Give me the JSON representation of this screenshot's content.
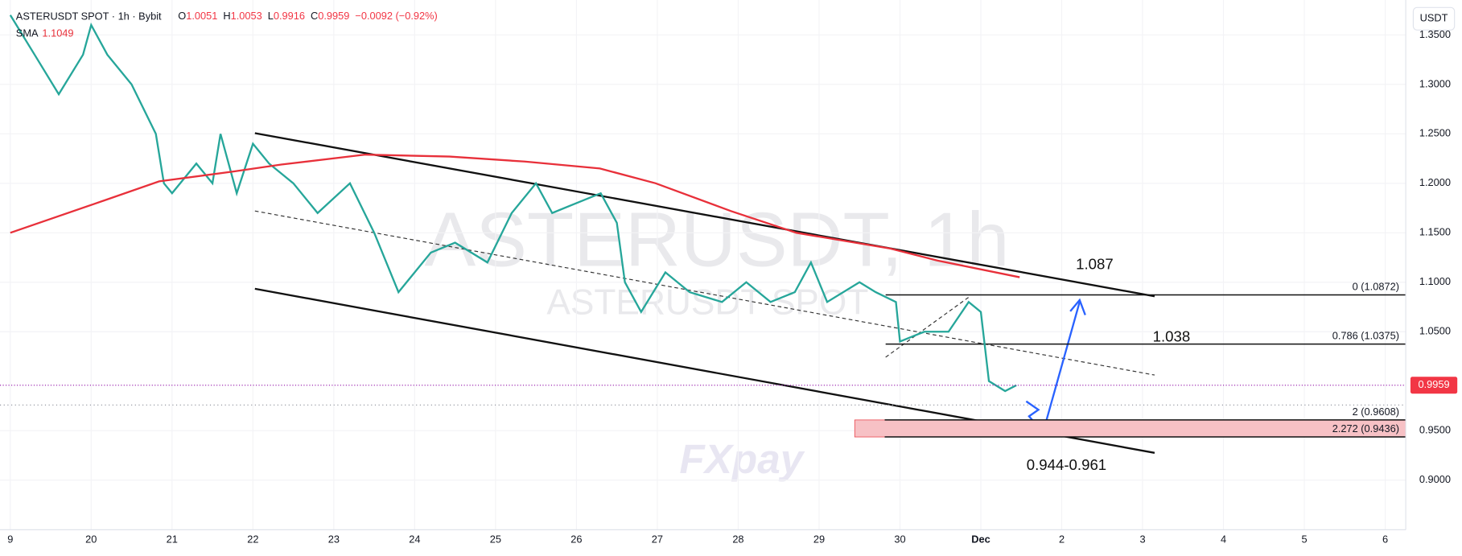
{
  "chart_data": {
    "type": "line",
    "symbol": "ASTERUSDT SPOT · 1h · Bybit",
    "ohlc": [
      {
        "label": "O",
        "value": "1.0051"
      },
      {
        "label": "H",
        "value": "1.0053"
      },
      {
        "label": "L",
        "value": "0.9916"
      },
      {
        "label": "C",
        "value": "0.9959"
      }
    ],
    "change": "−0.0092 (−0.92%)",
    "sma_label": "SMA",
    "sma_value": "1.1049",
    "watermark": "ASTERUSDT, 1h",
    "watermark_sub": "ASTERUSDT SPOT",
    "currency_button": "USDT",
    "logo": "FXpay",
    "last_price": {
      "value": 0.9959,
      "label": "0.9959",
      "color": "#f23645"
    },
    "series": [
      {
        "name": "ASTERUSDT",
        "color": "#26a69a",
        "x": [
          0,
          0.3,
          0.6,
          0.9,
          1.0,
          1.2,
          1.5,
          1.8,
          1.9,
          2.0,
          2.3,
          2.5,
          2.6,
          2.8,
          3.0,
          3.2,
          3.5,
          3.8,
          4.2,
          4.5,
          4.8,
          5.2,
          5.5,
          5.9,
          6.2,
          6.5,
          6.7,
          7.0,
          7.3,
          7.5,
          7.6,
          7.8,
          8.1,
          8.4,
          8.8,
          9.1,
          9.4,
          9.7,
          9.9,
          10.1,
          10.5,
          10.7,
          10.95,
          11.0,
          11.3,
          11.6,
          11.85,
          12.0,
          12.1,
          12.3,
          12.44
        ],
        "values": [
          1.37,
          1.33,
          1.29,
          1.33,
          1.36,
          1.33,
          1.3,
          1.25,
          1.2,
          1.19,
          1.22,
          1.2,
          1.25,
          1.19,
          1.24,
          1.22,
          1.2,
          1.17,
          1.2,
          1.15,
          1.09,
          1.13,
          1.14,
          1.12,
          1.17,
          1.2,
          1.17,
          1.18,
          1.19,
          1.16,
          1.1,
          1.07,
          1.11,
          1.09,
          1.08,
          1.1,
          1.08,
          1.09,
          1.12,
          1.08,
          1.1,
          1.09,
          1.08,
          1.04,
          1.05,
          1.05,
          1.08,
          1.07,
          1.0,
          0.99,
          0.9959
        ]
      },
      {
        "name": "SMA",
        "color": "#e8303a",
        "x": [
          0,
          1.03,
          1.84,
          2.77,
          3.35,
          4.39,
          5.43,
          6.36,
          7.29,
          7.98,
          8.91,
          9.72,
          10.88,
          11.46,
          12.48
        ],
        "values": [
          1.15,
          1.179,
          1.202,
          1.212,
          1.219,
          1.229,
          1.227,
          1.222,
          1.215,
          1.2,
          1.172,
          1.15,
          1.134,
          1.122,
          1.105
        ]
      }
    ],
    "fib_levels": [
      {
        "value": 1.0872,
        "label": "0 (1.0872)"
      },
      {
        "value": 1.0375,
        "label": "0.786 (1.0375)"
      },
      {
        "value": 0.9608,
        "label": "2 (0.9608)"
      },
      {
        "value": 0.9436,
        "label": "2.272 (0.9436)"
      }
    ],
    "annotations": [
      "1.087",
      "1.038",
      "0.944-0.961"
    ],
    "xlim": [
      -0.127,
      17.254
    ],
    "ylim": [
      0.8498,
      1.3853
    ],
    "xticks": [
      {
        "value": 0,
        "label": "9"
      },
      {
        "value": 1,
        "label": "20"
      },
      {
        "value": 2,
        "label": "21"
      },
      {
        "value": 3,
        "label": "22"
      },
      {
        "value": 4,
        "label": "23"
      },
      {
        "value": 5,
        "label": "24"
      },
      {
        "value": 6,
        "label": "25"
      },
      {
        "value": 7,
        "label": "26"
      },
      {
        "value": 8,
        "label": "27"
      },
      {
        "value": 9,
        "label": "28"
      },
      {
        "value": 10,
        "label": "29"
      },
      {
        "value": 11,
        "label": "30"
      },
      {
        "value": 12,
        "label": "Dec"
      },
      {
        "value": 13,
        "label": "2"
      },
      {
        "value": 14,
        "label": "3"
      },
      {
        "value": 15,
        "label": "4"
      },
      {
        "value": 16,
        "label": "5"
      },
      {
        "value": 17,
        "label": "6"
      }
    ],
    "yticks": [
      {
        "value": 1.35,
        "label": "1.3500"
      },
      {
        "value": 1.3,
        "label": "1.3000"
      },
      {
        "value": 1.25,
        "label": "1.2500"
      },
      {
        "value": 1.2,
        "label": "1.2000"
      },
      {
        "value": 1.15,
        "label": "1.1500"
      },
      {
        "value": 1.1,
        "label": "1.1000"
      },
      {
        "value": 1.05,
        "label": "1.0500"
      },
      {
        "value": 0.95,
        "label": "0.9500"
      },
      {
        "value": 0.9,
        "label": "0.9000"
      }
    ]
  }
}
